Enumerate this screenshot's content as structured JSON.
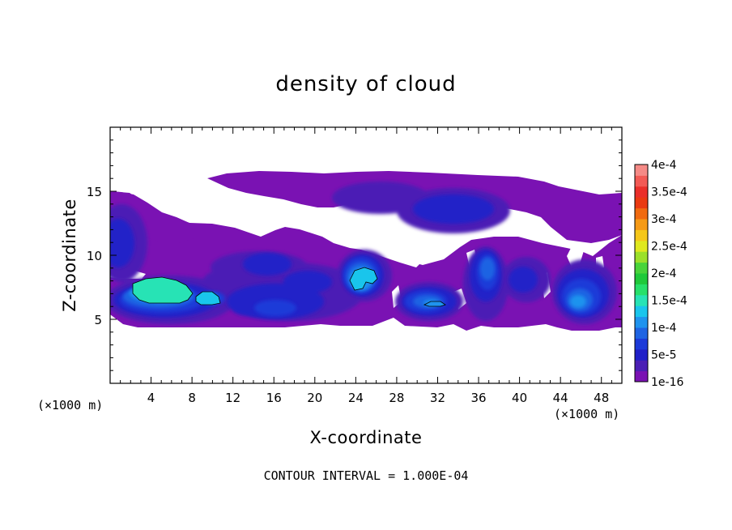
{
  "chart_data": {
    "type": "heatmap",
    "title": "density of cloud",
    "xlabel": "X-coordinate",
    "ylabel": "Z-coordinate",
    "x_unit": "(×1000 m)",
    "x_unit_right": "(×1000 m)",
    "xlim": [
      0,
      50
    ],
    "ylim": [
      0,
      20
    ],
    "x_ticks": [
      "4",
      "8",
      "12",
      "16",
      "20",
      "24",
      "28",
      "32",
      "36",
      "40",
      "44",
      "48"
    ],
    "y_ticks": [
      "5",
      "10",
      "15"
    ],
    "contour_interval": "CONTOUR INTERVAL = 1.000E-04",
    "grid": false,
    "colorbar": {
      "position": "right",
      "labels": [
        "1e-16",
        "5e-5",
        "1e-4",
        "1.5e-4",
        "2e-4",
        "2.5e-4",
        "3e-4",
        "3.5e-4",
        "4e-4"
      ],
      "colors": [
        "#7a12b3",
        "#4b1fb5",
        "#2020c8",
        "#1c3ad8",
        "#1f64e3",
        "#1f93ee",
        "#19c5ec",
        "#27e3b5",
        "#27e06a",
        "#1fc93a",
        "#49d43a",
        "#9be02a",
        "#dfe81f",
        "#f5c71a",
        "#f59a16",
        "#f06a10",
        "#ea3a12",
        "#ea2f2a",
        "#f25a55",
        "#f58a86"
      ]
    },
    "cloud_regions": [
      {
        "x": [
          0,
          50
        ],
        "z": [
          4.5,
          14.8
        ],
        "value": "1e-16",
        "note": "main cloud layer, lower edge ~4.5"
      },
      {
        "x": [
          10,
          50
        ],
        "z": [
          12,
          16.3
        ],
        "value": "1e-16",
        "note": "upper cloud layer"
      },
      {
        "x": [
          1.5,
          7.5
        ],
        "z": [
          6.5,
          8.2
        ],
        "value": "1.5e-4",
        "note": "peak core near x=4-6, z=7.5"
      },
      {
        "x": [
          9,
          10.5
        ],
        "z": [
          6.2,
          7.2
        ],
        "value": "1e-4"
      },
      {
        "x": [
          23,
          26
        ],
        "z": [
          7,
          8.8
        ],
        "value": "1.2e-4",
        "note": "core near x=24"
      },
      {
        "x": [
          29.5,
          32.5
        ],
        "z": [
          5.8,
          6.4
        ],
        "value": "1e-4"
      },
      {
        "x": [
          35,
          37.5
        ],
        "z": [
          6,
          10.5
        ],
        "value": "8e-5"
      },
      {
        "x": [
          44,
          49
        ],
        "z": [
          5,
          8.5
        ],
        "value": "8e-5"
      },
      {
        "x": [
          0,
          4
        ],
        "z": [
          9,
          13
        ],
        "value": "6e-5"
      },
      {
        "x": [
          27,
          38
        ],
        "z": [
          12.5,
          15.5
        ],
        "value": "6e-5"
      }
    ]
  }
}
